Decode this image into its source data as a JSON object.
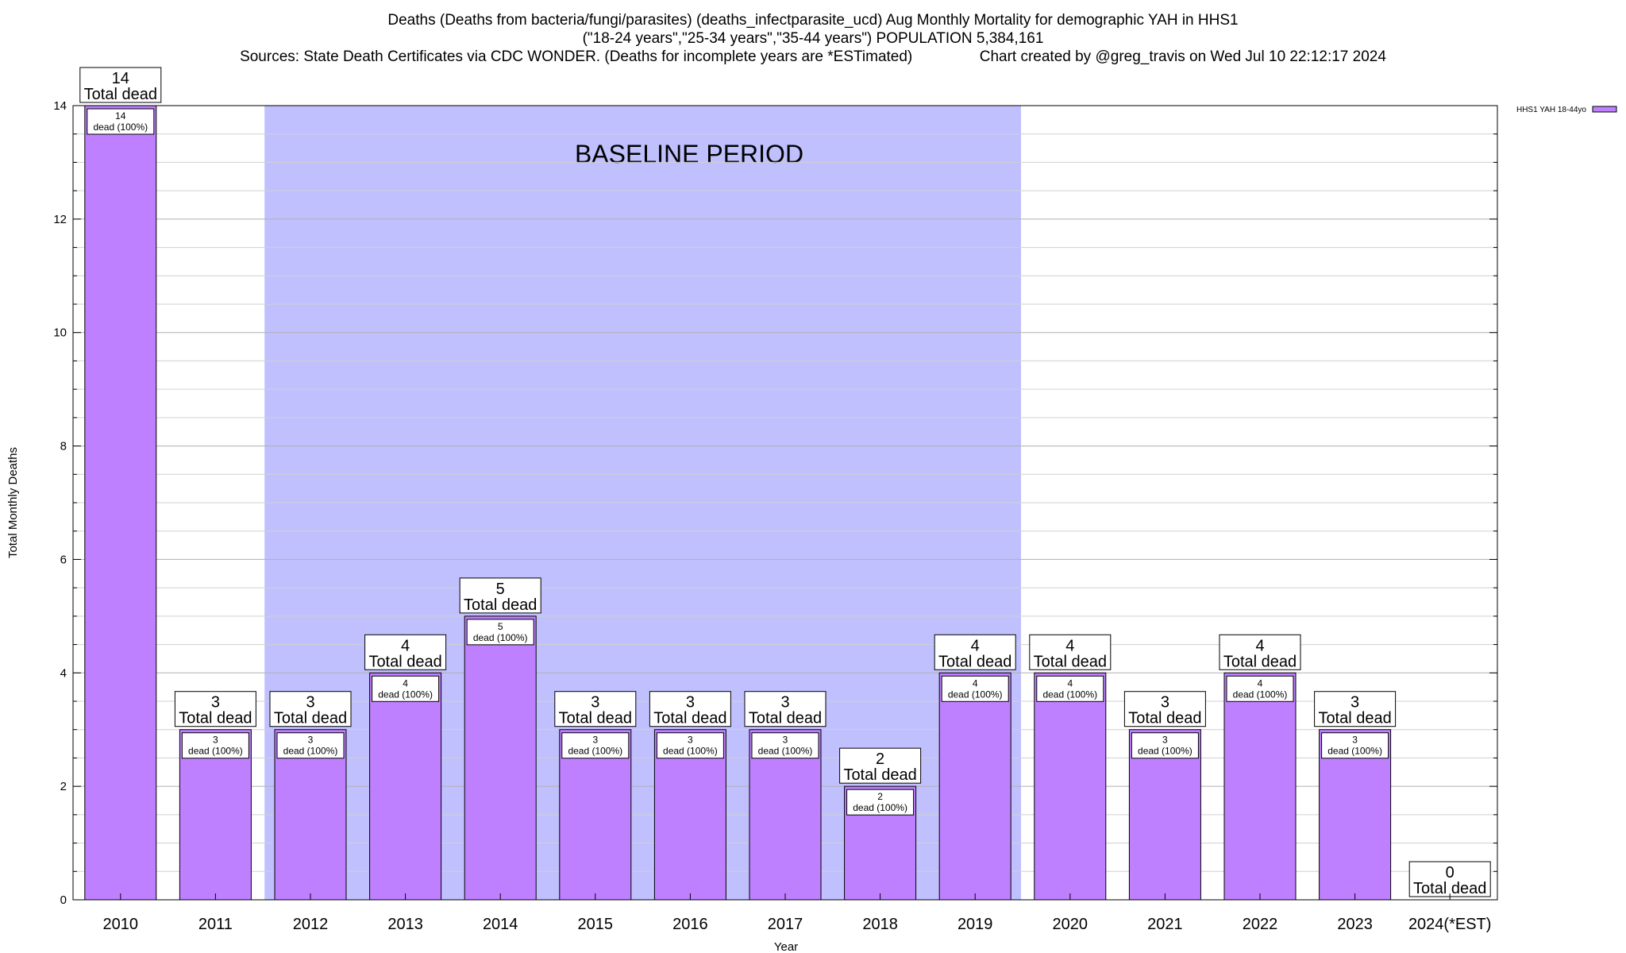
{
  "chart_data": {
    "type": "bar",
    "title_lines": [
      "Deaths (Deaths from bacteria/fungi/parasites) (deaths_infectparasite_ucd) Aug Monthly Mortality for demographic YAH in HHS1",
      "(\"18-24 years\",\"25-34 years\",\"35-44 years\") POPULATION 5,384,161",
      "Sources: State Death Certificates via CDC WONDER. (Deaths for incomplete years are *ESTimated)                Chart created by @greg_travis on Wed Jul 10 22:12:17 2024"
    ],
    "xlabel": "Year",
    "ylabel": "Total Monthly Deaths",
    "categories": [
      "2010",
      "2011",
      "2012",
      "2013",
      "2014",
      "2015",
      "2016",
      "2017",
      "2018",
      "2019",
      "2020",
      "2021",
      "2022",
      "2023",
      "2024(*EST)"
    ],
    "series": [
      {
        "name": "HHS1 YAH 18-44yo",
        "color": "#bf80ff",
        "values": [
          14,
          3,
          3,
          4,
          5,
          3,
          3,
          3,
          2,
          4,
          4,
          3,
          4,
          3,
          0
        ]
      }
    ],
    "ylim": [
      0,
      14
    ],
    "yticks": [
      0,
      2,
      4,
      6,
      8,
      10,
      12,
      14
    ],
    "total_label": "Total dead",
    "inner_label": "dead (100%)",
    "baseline": {
      "label": "BASELINE PERIOD",
      "from": "2012",
      "to": "2019",
      "color": "#c0c0ff"
    },
    "grid": true,
    "legend_position": "top-right"
  }
}
